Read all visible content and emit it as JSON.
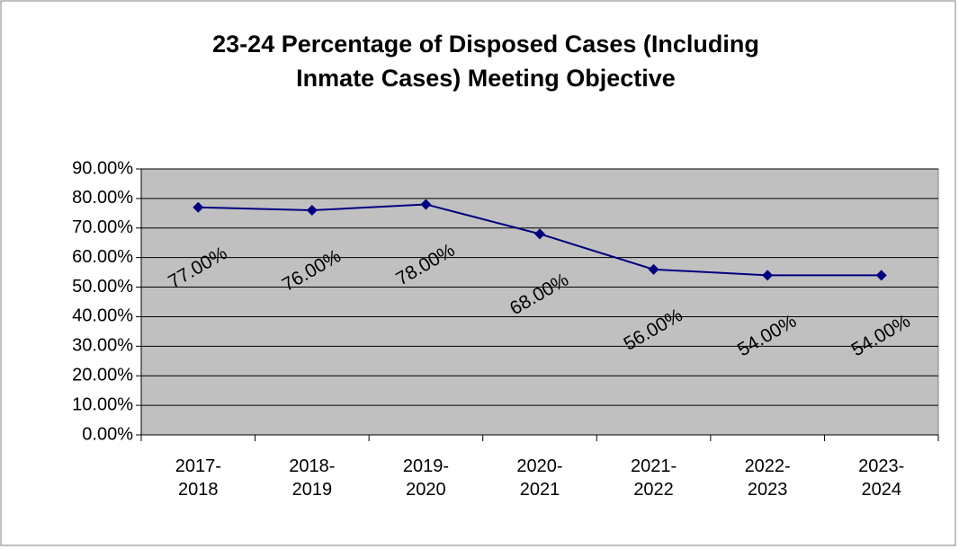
{
  "chart_data": {
    "type": "line",
    "title": "23-24 Percentage of Disposed Cases (Including Inmate Cases) Meeting Objective",
    "categories": [
      "2017-2018",
      "2018-2019",
      "2019-2020",
      "2020-2021",
      "2021-2022",
      "2022-2023",
      "2023-2024"
    ],
    "series": [
      {
        "color": "#000080",
        "values": [
          77,
          76,
          78,
          68,
          56,
          54,
          54
        ],
        "value_labels": [
          "77.00%",
          "76.00%",
          "78.00%",
          "68.00%",
          "56.00%",
          "54.00%",
          "54.00%"
        ]
      }
    ],
    "ylim": [
      0,
      90
    ],
    "yticks": [
      {
        "value": 0,
        "label": "0.00%"
      },
      {
        "value": 10,
        "label": "10.00%"
      },
      {
        "value": 20,
        "label": "20.00%"
      },
      {
        "value": 30,
        "label": "30.00%"
      },
      {
        "value": 40,
        "label": "40.00%"
      },
      {
        "value": 50,
        "label": "50.00%"
      },
      {
        "value": 60,
        "label": "60.00%"
      },
      {
        "value": 70,
        "label": "70.00%"
      },
      {
        "value": 80,
        "label": "80.00%"
      },
      {
        "value": 90,
        "label": "90.00%"
      }
    ],
    "grid": true,
    "plot_background": "#c0c0c0"
  }
}
